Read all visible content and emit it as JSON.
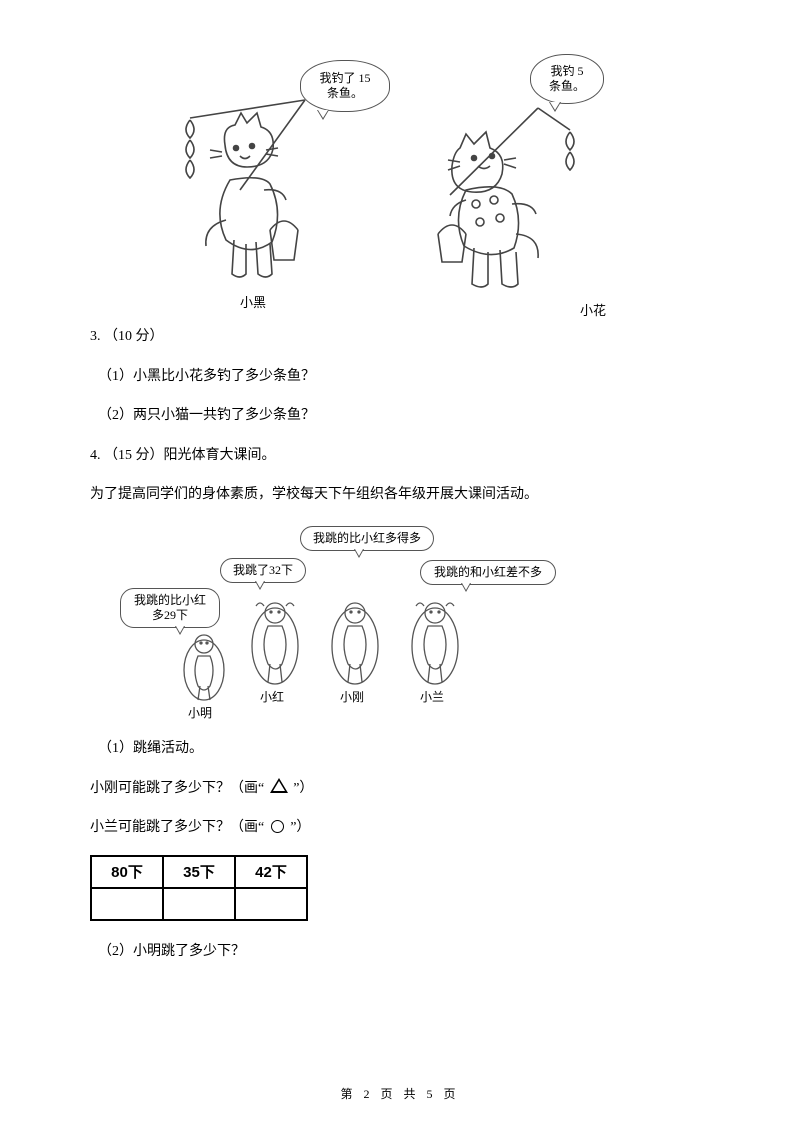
{
  "cats": {
    "left_bubble": "我钓了 15\n条鱼。",
    "right_bubble": "我钓 5\n条鱼。",
    "left_name": "小黑",
    "right_name": "小花"
  },
  "q3": {
    "heading": "3. （10 分）",
    "sub1": "（1）小黑比小花多钓了多少条鱼？",
    "sub2": "（2）两只小猫一共钓了多少条鱼？"
  },
  "q4": {
    "heading": "4. （15 分）阳光体育大课间。",
    "intro": "为了提高同学们的身体素质，学校每天下午组织各年级开展大课间活动。"
  },
  "kids": {
    "b1": "我跳的比小红\n多29下",
    "b2": "我跳了32下",
    "b3": "我跳的比小红多得多",
    "b4": "我跳的和小红差不多",
    "n1": "小明",
    "n2": "小红",
    "n3": "小刚",
    "n4": "小兰"
  },
  "q4a": {
    "sub1": "（1）跳绳活动。",
    "line_tri_pre": "小刚可能跳了多少下？（画“",
    "line_tri_post": "”）",
    "line_cir_pre": "小兰可能跳了多少下？（画“",
    "line_cir_post": "”）",
    "cells": [
      "80下",
      "35下",
      "42下"
    ],
    "sub2": "（2）小明跳了多少下？"
  },
  "footer": "第 2 页 共 5 页"
}
